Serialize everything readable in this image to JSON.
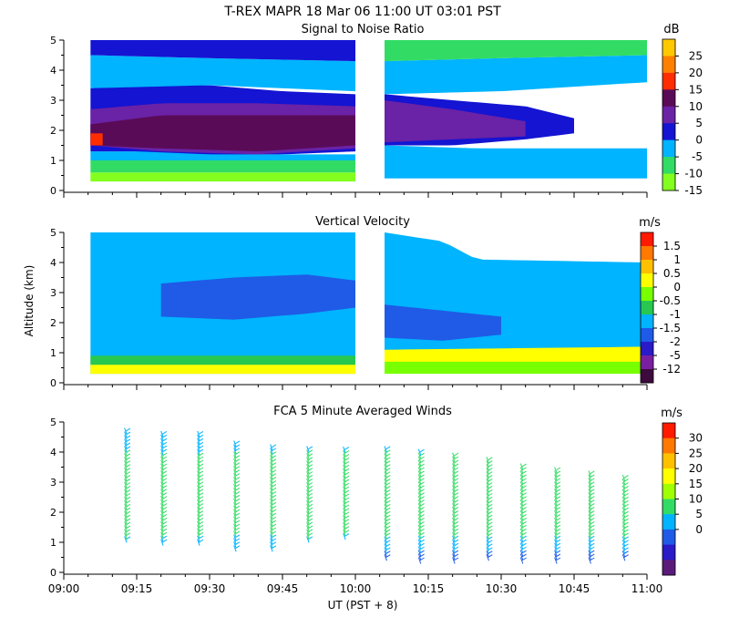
{
  "main_title": "T-REX   MAPR 18 Mar 06   11:00 UT   03:01   PST",
  "x_axis": {
    "label": "UT  (PST + 8)",
    "ticks": [
      "09:00",
      "09:15",
      "09:30",
      "09:45",
      "10:00",
      "10:15",
      "10:30",
      "10:45",
      "11:00"
    ],
    "range_minutes": [
      0,
      120
    ]
  },
  "y_label": "Altitude (km)",
  "panels": [
    {
      "id": "snr",
      "title": "Signal to Noise Ratio",
      "unit": "dB",
      "yticks": [
        "0",
        "1",
        "2",
        "3",
        "4",
        "5"
      ],
      "ylim": [
        0,
        5
      ],
      "legend": {
        "labels": [
          "25",
          "20",
          "15",
          "10",
          "5",
          "0",
          "-5",
          "-10",
          "-15"
        ],
        "colors": [
          "#ffc800",
          "#ff8000",
          "#ff2d00",
          "#5a0b57",
          "#6a22a6",
          "#1414d2",
          "#00b4ff",
          "#32dc64",
          "#82ff1e"
        ]
      }
    },
    {
      "id": "vv",
      "title": "Vertical Velocity",
      "unit": "m/s",
      "yticks": [
        "0",
        "1",
        "2",
        "3",
        "4",
        "5"
      ],
      "ylim": [
        0,
        5
      ],
      "legend": {
        "labels": [
          "1.5",
          "1",
          "0.5",
          "0",
          "-0.5",
          "-1",
          "-1.5",
          "-2",
          "-5",
          "-12"
        ],
        "colors": [
          "#ff1a00",
          "#ff7800",
          "#ffc000",
          "#ffff00",
          "#78ff00",
          "#28c850",
          "#00b4ff",
          "#1f5be6",
          "#2a1ac8",
          "#7b1fa2",
          "#3c0a3c"
        ]
      }
    },
    {
      "id": "winds",
      "title": "FCA 5 Minute Averaged Winds",
      "unit": "m/s",
      "yticks": [
        "0",
        "1",
        "2",
        "3",
        "4",
        "5"
      ],
      "ylim": [
        0,
        5
      ],
      "legend": {
        "labels": [
          "30",
          "25",
          "20",
          "15",
          "10",
          "5",
          "0"
        ],
        "colors": [
          "#ff1a00",
          "#ff7800",
          "#ffc000",
          "#ffff00",
          "#a0ff00",
          "#32dc64",
          "#00b4ff",
          "#1f5be6",
          "#2a1ac8",
          "#5a1a7a"
        ]
      }
    }
  ],
  "chart_data": [
    {
      "type": "heatmap",
      "title": "Signal to Noise Ratio",
      "unit": "dB",
      "xlabel": "UT  (PST + 8)",
      "ylabel": "Altitude (km)",
      "ylim": [
        0,
        5
      ],
      "data_gaps_minutes": [
        [
          0,
          5.5
        ],
        [
          60,
          66
        ],
        [
          120,
          120
        ]
      ],
      "time_segments_minutes": [
        [
          5.5,
          60
        ],
        [
          66,
          120
        ]
      ],
      "layers": [
        {
          "name": "surface",
          "t": [
            5.5,
            20,
            40,
            60
          ],
          "bottom": [
            0.3,
            0.3,
            0.3,
            0.3
          ],
          "top": [
            0.6,
            0.6,
            0.6,
            0.6
          ],
          "db": -15
        },
        {
          "name": "low-moist",
          "t": [
            5.5,
            20,
            40,
            60
          ],
          "bottom": [
            0.6,
            0.6,
            0.6,
            0.6
          ],
          "top": [
            1.0,
            1.0,
            1.0,
            1.0
          ],
          "db": -10
        },
        {
          "name": "low",
          "t": [
            5.5,
            20,
            40,
            60
          ],
          "bottom": [
            1.0,
            1.0,
            1.0,
            1.0
          ],
          "top": [
            1.3,
            1.3,
            1.2,
            1.2
          ],
          "db": -5
        },
        {
          "name": "core",
          "t": [
            5.5,
            15,
            30,
            45,
            60
          ],
          "bottom": [
            1.3,
            1.3,
            1.2,
            1.2,
            1.3
          ],
          "top": [
            3.4,
            3.5,
            3.5,
            3.3,
            3.2
          ],
          "db": 0
        },
        {
          "name": "max-core",
          "t": [
            5.5,
            20,
            40,
            60
          ],
          "bottom": [
            1.5,
            1.3,
            1.2,
            1.4
          ],
          "top": [
            2.7,
            2.9,
            2.9,
            2.8
          ],
          "db": 5
        },
        {
          "name": "deep-core",
          "t": [
            5.5,
            20,
            40,
            60
          ],
          "bottom": [
            1.5,
            1.4,
            1.3,
            1.5
          ],
          "top": [
            2.2,
            2.5,
            2.5,
            2.5
          ],
          "db": 10
        },
        {
          "name": "peak",
          "t": [
            5.5,
            8
          ],
          "bottom": [
            1.5,
            1.5
          ],
          "top": [
            1.9,
            1.9
          ],
          "db": 15
        },
        {
          "name": "upper",
          "t": [
            5.5,
            30,
            60
          ],
          "bottom": [
            3.4,
            3.5,
            3.3
          ],
          "top": [
            4.5,
            4.4,
            4.3
          ],
          "db": -5
        },
        {
          "name": "top",
          "t": [
            5.5,
            30,
            60
          ],
          "bottom": [
            4.5,
            4.4,
            4.3
          ],
          "top": [
            5.0,
            5.0,
            5.0
          ],
          "db": 0
        },
        {
          "name": "seg2-low",
          "t": [
            66,
            85,
            105,
            120
          ],
          "bottom": [
            0.4,
            0.4,
            0.4,
            0.4
          ],
          "top": [
            1.5,
            1.4,
            1.4,
            1.4
          ],
          "db": -5
        },
        {
          "name": "seg2-mid",
          "t": [
            66,
            80,
            95,
            105
          ],
          "bottom": [
            1.5,
            1.5,
            1.7,
            1.9
          ],
          "top": [
            3.2,
            3.0,
            2.8,
            2.4
          ],
          "db": 0
        },
        {
          "name": "seg2-core",
          "t": [
            66,
            80,
            95
          ],
          "bottom": [
            1.6,
            1.7,
            1.8
          ],
          "top": [
            3.0,
            2.7,
            2.3
          ],
          "db": 5
        },
        {
          "name": "seg2-upper",
          "t": [
            66,
            90,
            120
          ],
          "bottom": [
            3.2,
            3.3,
            3.6
          ],
          "top": [
            4.3,
            4.4,
            4.5
          ],
          "db": -5
        },
        {
          "name": "seg2-top",
          "t": [
            66,
            90,
            120
          ],
          "bottom": [
            4.3,
            4.4,
            4.5
          ],
          "top": [
            5.0,
            5.0,
            5.0
          ],
          "db": -10
        }
      ]
    },
    {
      "type": "heatmap",
      "title": "Vertical Velocity",
      "unit": "m/s",
      "xlabel": "UT  (PST + 8)",
      "ylabel": "Altitude (km)",
      "ylim": [
        0,
        5
      ],
      "data_gaps_minutes": [
        [
          0,
          5.5
        ],
        [
          60,
          66
        ],
        [
          120,
          120
        ]
      ],
      "time_segments_minutes": [
        [
          5.5,
          60
        ],
        [
          66,
          120
        ]
      ],
      "layers": [
        {
          "name": "background",
          "t": [
            5.5,
            60
          ],
          "bottom": [
            0.6,
            0.6
          ],
          "top": [
            5.0,
            5.0
          ],
          "mps": -1
        },
        {
          "name": "downdraft-band",
          "t": [
            20,
            35,
            50,
            60
          ],
          "bottom": [
            2.2,
            2.1,
            2.3,
            2.5
          ],
          "top": [
            3.3,
            3.5,
            3.6,
            3.4
          ],
          "mps": -1.5
        },
        {
          "name": "near-surface",
          "t": [
            5.5,
            60
          ],
          "bottom": [
            0.3,
            0.3
          ],
          "top": [
            0.9,
            0.9
          ],
          "mps": -0.5
        },
        {
          "name": "surface-updraft",
          "t": [
            5.5,
            60
          ],
          "bottom": [
            0.3,
            0.3
          ],
          "top": [
            0.6,
            0.6
          ],
          "mps": 0.5
        },
        {
          "name": "seg2-background",
          "t": [
            66,
            78,
            85,
            120
          ],
          "bottom": [
            0.9,
            0.9,
            0.9,
            0.9
          ],
          "top": [
            5.0,
            4.7,
            4.1,
            4.0
          ],
          "mps": -1
        },
        {
          "name": "seg2-band",
          "t": [
            66,
            78,
            90
          ],
          "bottom": [
            1.5,
            1.4,
            1.6
          ],
          "top": [
            2.6,
            2.4,
            2.2
          ],
          "mps": -1.5
        },
        {
          "name": "seg2-low",
          "t": [
            66,
            120
          ],
          "bottom": [
            0.4,
            0.4
          ],
          "top": [
            1.1,
            1.2
          ],
          "mps": 0.5
        },
        {
          "name": "seg2-surface",
          "t": [
            66,
            120
          ],
          "bottom": [
            0.3,
            0.3
          ],
          "top": [
            0.7,
            0.7
          ],
          "mps": 0
        }
      ]
    },
    {
      "type": "scatter",
      "title": "FCA 5 Minute Averaged Winds",
      "unit": "m/s",
      "xlabel": "UT  (PST + 8)",
      "ylabel": "Altitude (km)",
      "ylim": [
        0,
        5
      ],
      "glyph": "wind-barb",
      "profile_times_minutes": [
        12.5,
        20,
        27.5,
        35,
        42.5,
        50,
        57.5,
        66,
        73,
        80,
        87,
        94,
        101,
        108,
        115
      ],
      "profile_tops_km": [
        4.8,
        4.8,
        4.7,
        4.4,
        4.3,
        4.2,
        4.2,
        4.3,
        4.2,
        4.0,
        3.9,
        3.7,
        3.6,
        3.4,
        3.3
      ],
      "profile_bottoms_km": [
        1.2,
        1.1,
        1.1,
        0.9,
        0.9,
        1.2,
        1.3,
        0.6,
        0.5,
        0.5,
        0.6,
        0.5,
        0.5,
        0.5,
        0.6
      ],
      "speed_by_altitude_km": [
        {
          "alt": 0.5,
          "speed": 6
        },
        {
          "alt": 1.5,
          "speed": 13
        },
        {
          "alt": 2.5,
          "speed": 15
        },
        {
          "alt": 3.5,
          "speed": 14
        },
        {
          "alt": 4.5,
          "speed": 10
        }
      ],
      "direction_deg": 210
    }
  ]
}
